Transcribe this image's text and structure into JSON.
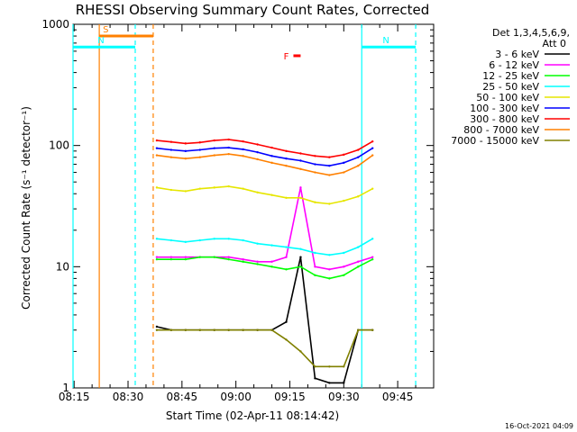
{
  "chart_data": {
    "type": "line",
    "title": "RHESSI Observing Summary Count Rates, Corrected",
    "xlabel": "Start Time (02-Apr-11 08:14:42)",
    "ylabel": "Corrected Count Rate (s⁻¹ detector⁻¹)",
    "y_scale": "log",
    "ylim": [
      1,
      1000
    ],
    "xlim": [
      "08:14:42",
      "09:55:00"
    ],
    "x_ticks": [
      "08:15",
      "08:30",
      "08:45",
      "09:00",
      "09:15",
      "09:30",
      "09:45"
    ],
    "y_ticks": [
      "1",
      "10",
      "100",
      "1000"
    ],
    "legend_header": [
      "Det 1,3,4,5,6,9,",
      "Att 0"
    ],
    "legend_position": "top-right, outside plot",
    "footer": "16-Oct-2021 04:09",
    "x": [
      "08:38",
      "08:42",
      "08:46",
      "08:50",
      "08:54",
      "08:58",
      "09:02",
      "09:06",
      "09:10",
      "09:14",
      "09:18",
      "09:22",
      "09:26",
      "09:30",
      "09:34",
      "09:38"
    ],
    "series": [
      {
        "name": "3 - 6 keV",
        "color": "#000000",
        "values": [
          3.2,
          3.0,
          3.0,
          3.0,
          3.0,
          3.0,
          3.0,
          3.0,
          3.0,
          3.5,
          12,
          1.2,
          1.1,
          1.1,
          3.0,
          3.0
        ]
      },
      {
        "name": "6 - 12 keV",
        "color": "#ff00ff",
        "values": [
          12,
          12,
          12,
          12,
          12,
          12,
          11.5,
          11,
          11,
          12,
          45,
          10,
          9.5,
          10,
          11,
          12
        ]
      },
      {
        "name": "12 - 25 keV",
        "color": "#00ff00",
        "values": [
          11.5,
          11.5,
          11.5,
          12,
          12,
          11.5,
          11,
          10.5,
          10,
          9.5,
          10,
          8.5,
          8,
          8.5,
          10,
          11.5
        ]
      },
      {
        "name": "25 - 50 keV",
        "color": "#00ffff",
        "values": [
          17,
          16.5,
          16,
          16.5,
          17,
          17,
          16.5,
          15.5,
          15,
          14.5,
          14,
          13,
          12.5,
          13,
          14.5,
          17
        ]
      },
      {
        "name": "50 - 100 keV",
        "color": "#e6e600",
        "values": [
          45,
          43,
          42,
          44,
          45,
          46,
          44,
          41,
          39,
          37,
          37,
          34,
          33,
          35,
          38,
          44
        ]
      },
      {
        "name": "100 - 300 keV",
        "color": "#0000ff",
        "values": [
          95,
          92,
          90,
          92,
          95,
          96,
          93,
          88,
          82,
          78,
          75,
          70,
          68,
          72,
          80,
          95
        ]
      },
      {
        "name": "300 - 800 keV",
        "color": "#ff0000",
        "values": [
          110,
          107,
          104,
          106,
          110,
          112,
          108,
          102,
          96,
          90,
          86,
          82,
          80,
          84,
          92,
          108
        ]
      },
      {
        "name": "800 - 7000 keV",
        "color": "#ff8000",
        "values": [
          83,
          80,
          78,
          80,
          83,
          85,
          82,
          77,
          72,
          68,
          64,
          60,
          57,
          60,
          68,
          83
        ]
      },
      {
        "name": "7000 - 15000 keV",
        "color": "#808000",
        "values": [
          3.0,
          3.0,
          3.0,
          3.0,
          3.0,
          3.0,
          3.0,
          3.0,
          3.0,
          2.5,
          2.0,
          1.5,
          1.5,
          1.5,
          3.0,
          3.0
        ]
      }
    ],
    "flag_bars": [
      {
        "label": "S",
        "color": "#ff8000",
        "start": "08:22",
        "end": "08:37",
        "level": 800
      },
      {
        "label": "N",
        "color": "#00ffff",
        "start": "08:14:42",
        "end": "08:32",
        "level": 650
      },
      {
        "label": "N",
        "color": "#00ffff",
        "start": "09:35",
        "end": "09:50",
        "level": 650
      },
      {
        "label": "F",
        "color": "#ff0000",
        "start": "09:16",
        "end": "09:18",
        "level": 550
      }
    ],
    "vertical_lines": [
      {
        "time": "08:14:42",
        "color": "#00ffff",
        "dashed": false
      },
      {
        "time": "08:22",
        "color": "#ff8000",
        "dashed": false
      },
      {
        "time": "08:32",
        "color": "#00ffff",
        "dashed": true
      },
      {
        "time": "08:37",
        "color": "#ff8000",
        "dashed": true
      },
      {
        "time": "09:35",
        "color": "#00ffff",
        "dashed": false
      },
      {
        "time": "09:50",
        "color": "#00ffff",
        "dashed": true
      }
    ]
  }
}
